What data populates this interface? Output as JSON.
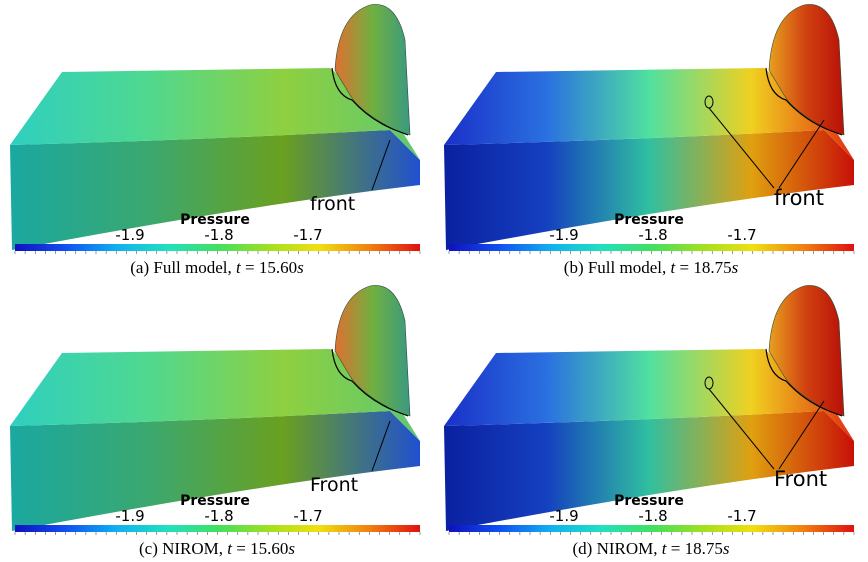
{
  "panels": [
    {
      "colorbar_title": "Pressure",
      "colorbar_ticks": [
        -1.9,
        -1.8,
        -1.7
      ],
      "annotation": "front",
      "caption": [
        "(a) Full model, ",
        "t",
        " = 15.60",
        "s"
      ]
    },
    {
      "colorbar_title": "Pressure",
      "colorbar_ticks": [
        -1.9,
        -1.8,
        -1.7
      ],
      "annotation": "front",
      "caption": [
        "(b) Full model, ",
        "t",
        " = 18.75",
        "s"
      ]
    },
    {
      "colorbar_title": "Pressure",
      "colorbar_ticks": [
        -1.9,
        -1.8,
        -1.7
      ],
      "annotation": "Front",
      "caption": [
        "(c) NIROM, ",
        "t",
        " = 15.60",
        "s"
      ]
    },
    {
      "colorbar_title": "Pressure",
      "colorbar_ticks": [
        -1.9,
        -1.8,
        -1.7
      ],
      "annotation": "Front",
      "caption": [
        "(d) NIROM, ",
        "t",
        " = 18.75",
        "s"
      ]
    }
  ]
}
